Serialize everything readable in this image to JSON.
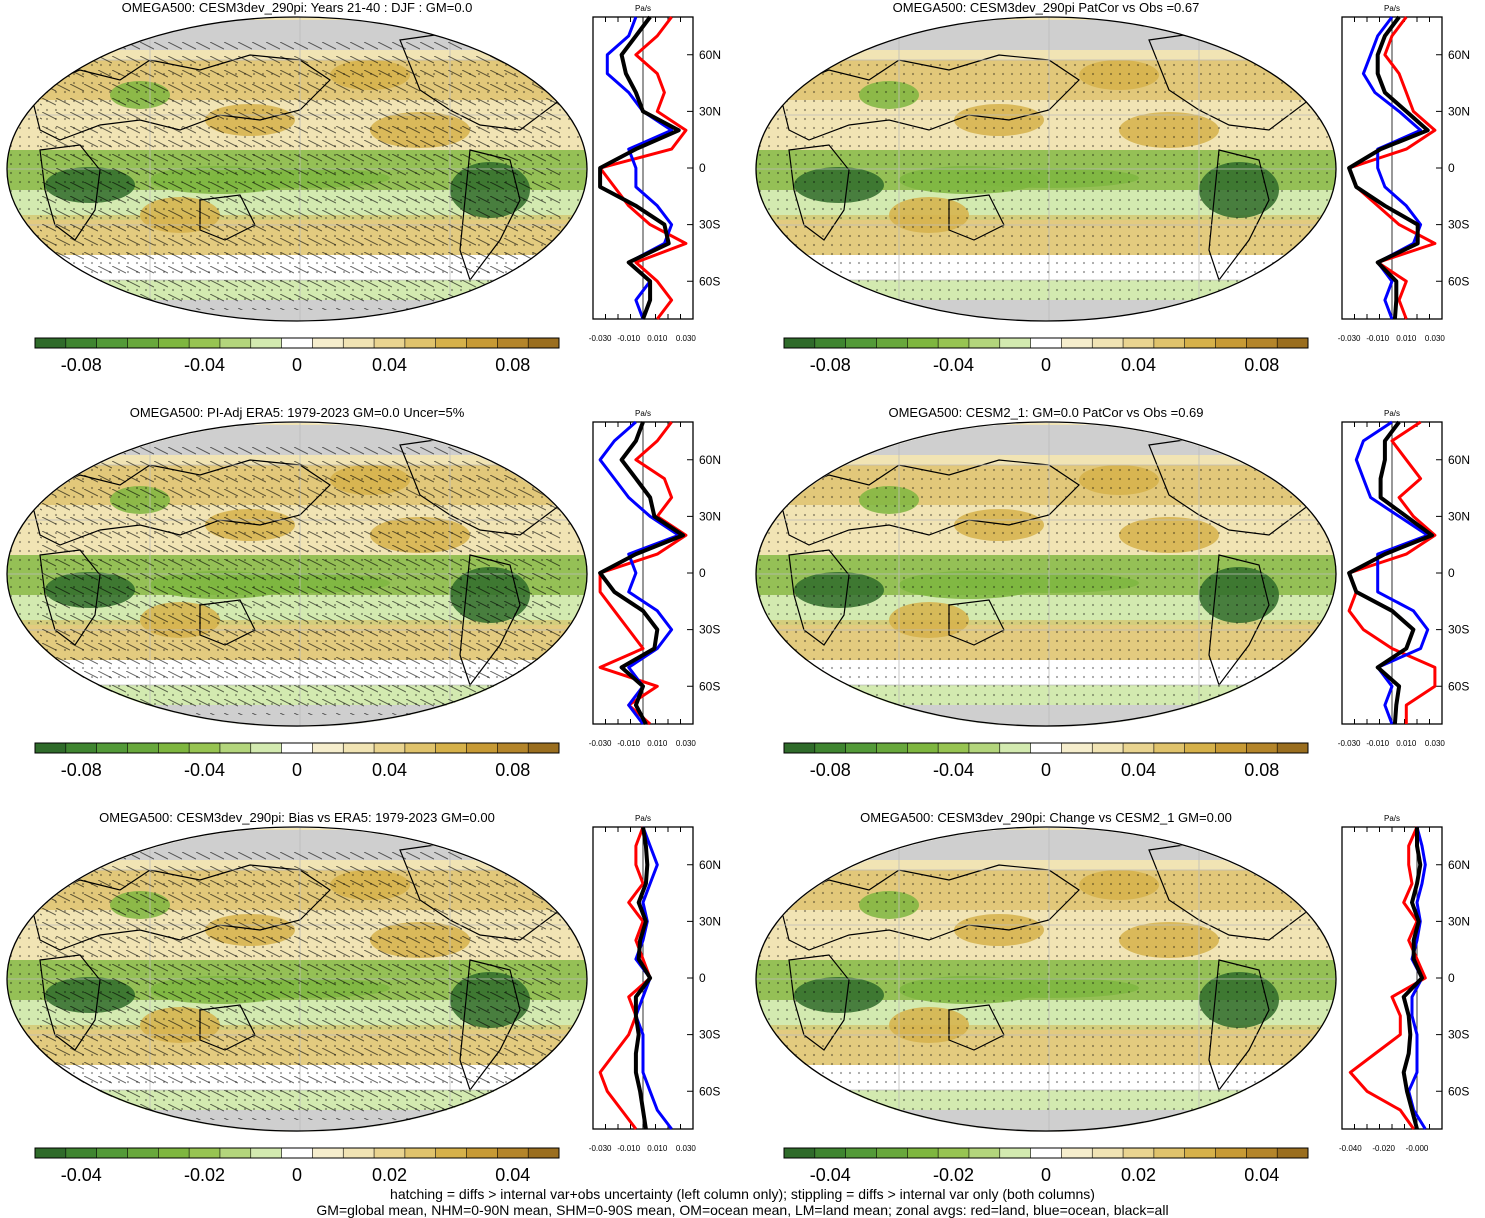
{
  "colors": {
    "negative_strong": "#2f6b2a",
    "negative_mid": "#7eb63f",
    "negative_light": "#d3eab0",
    "positive_light": "#f1e4b4",
    "positive_mid": "#d6b14a",
    "positive_strong": "#9a6e1f",
    "land": "#cfcfcf",
    "zonal_land": "#ff0000",
    "zonal_ocean": "#0000ff",
    "zonal_all": "#000000"
  },
  "shared": {
    "zonal_unit": "Pa/s",
    "lat_labels": [
      "60N",
      "30N",
      "0",
      "30S",
      "60S"
    ]
  },
  "panels": [
    {
      "title": "OMEGA500: CESM3dev_290pi: Years 21-40 : DJF : GM=0.0",
      "colorbar_labels": [
        "-0.08",
        "-0.04",
        "0",
        "0.04",
        "0.08"
      ],
      "zonal_xticks": [
        "-0.030",
        "-0.010",
        "0.010",
        "0.030"
      ],
      "hatching": true
    },
    {
      "title": "OMEGA500: CESM3dev_290pi PatCor vs Obs =0.67",
      "colorbar_labels": [
        "-0.08",
        "-0.04",
        "0",
        "0.04",
        "0.08"
      ],
      "zonal_xticks": [
        "-0.030",
        "-0.010",
        "0.010",
        "0.030"
      ],
      "hatching": false
    },
    {
      "title": "OMEGA500: PI-Adj ERA5: 1979-2023 GM=0.0 Uncer=5%",
      "colorbar_labels": [
        "-0.08",
        "-0.04",
        "0",
        "0.04",
        "0.08"
      ],
      "zonal_xticks": [
        "-0.030",
        "-0.010",
        "0.010",
        "0.030"
      ],
      "hatching": true
    },
    {
      "title": "OMEGA500: CESM2_1: GM=0.0 PatCor vs Obs =0.69",
      "colorbar_labels": [
        "-0.08",
        "-0.04",
        "0",
        "0.04",
        "0.08"
      ],
      "zonal_xticks": [
        "-0.030",
        "-0.010",
        "0.010",
        "0.030"
      ],
      "hatching": false
    },
    {
      "title": "OMEGA500: CESM3dev_290pi: Bias vs ERA5: 1979-2023 GM=0.00",
      "colorbar_labels": [
        "-0.04",
        "-0.02",
        "0",
        "0.02",
        "0.04"
      ],
      "zonal_xticks": [
        "-0.030",
        "-0.010",
        "0.010",
        "0.030"
      ],
      "hatching": true
    },
    {
      "title": "OMEGA500: CESM3dev_290pi: Change vs CESM2_1 GM=0.00",
      "colorbar_labels": [
        "-0.04",
        "-0.02",
        "0",
        "0.02",
        "0.04"
      ],
      "zonal_xticks": [
        "-0.040",
        "-0.020",
        "-0.000"
      ],
      "hatching": false
    }
  ],
  "footer": {
    "line1": "hatching = diffs > internal var+obs uncertainty (left column only); stippling = diffs > internal var only (both columns)",
    "line2": "GM=global mean, NHM=0-90N mean, SHM=0-90S mean, OM=ocean mean, LM=land mean; zonal avgs: red=land, blue=ocean, black=all"
  },
  "chart_data": [
    {
      "type": "heatmap",
      "title": "OMEGA500: CESM3dev_290pi: Years 21-40 : DJF : GM=0.0",
      "colorbar_ticks": [
        -0.08,
        -0.04,
        0,
        0.04,
        0.08
      ],
      "zonal_profile": {
        "xlabel": "Pa/s",
        "xlim": [
          -0.035,
          0.035
        ],
        "ylabels": [
          "60N",
          "30N",
          "0",
          "30S",
          "60S"
        ],
        "lat": [
          80,
          70,
          60,
          50,
          40,
          30,
          20,
          10,
          0,
          -10,
          -20,
          -30,
          -40,
          -50,
          -60,
          -70,
          -80
        ],
        "series": [
          {
            "name": "land",
            "values": [
              0.02,
              0.01,
              -0.005,
              0.01,
              0.015,
              0.01,
              0.03,
              0.02,
              -0.03,
              -0.02,
              -0.01,
              0.005,
              0.03,
              -0.005,
              0.01,
              0.02,
              0.01
            ]
          },
          {
            "name": "ocean",
            "values": [
              -0.005,
              -0.01,
              -0.025,
              -0.025,
              -0.01,
              0.0,
              0.02,
              -0.01,
              -0.005,
              -0.005,
              0.01,
              0.02,
              0.015,
              -0.01,
              0.005,
              -0.005,
              0.0
            ]
          },
          {
            "name": "all",
            "values": [
              0.005,
              -0.005,
              -0.015,
              -0.012,
              -0.005,
              0.0,
              0.025,
              -0.005,
              -0.03,
              -0.03,
              -0.005,
              0.015,
              0.018,
              -0.01,
              0.005,
              0.005,
              0.0
            ]
          }
        ]
      }
    },
    {
      "type": "heatmap",
      "title": "OMEGA500: CESM3dev_290pi PatCor vs Obs =0.67",
      "colorbar_ticks": [
        -0.08,
        -0.04,
        0,
        0.04,
        0.08
      ],
      "zonal_profile": {
        "xlabel": "Pa/s",
        "xlim": [
          -0.035,
          0.035
        ],
        "ylabels": [
          "60N",
          "30N",
          "0",
          "30S",
          "60S"
        ],
        "lat": [
          80,
          70,
          60,
          50,
          40,
          30,
          20,
          10,
          0,
          -10,
          -20,
          -30,
          -40,
          -50,
          -60,
          -70,
          -80
        ],
        "series": [
          {
            "name": "land",
            "values": [
              0.01,
              0.0,
              -0.005,
              0.005,
              0.01,
              0.015,
              0.03,
              0.01,
              -0.03,
              -0.025,
              -0.01,
              0.005,
              0.03,
              -0.01,
              0.01,
              0.005,
              0.01
            ]
          },
          {
            "name": "ocean",
            "values": [
              0.0,
              -0.01,
              -0.015,
              -0.02,
              -0.012,
              0.005,
              0.02,
              -0.01,
              -0.01,
              -0.005,
              0.01,
              0.02,
              0.015,
              -0.01,
              0.0,
              -0.005,
              0.0
            ]
          },
          {
            "name": "all",
            "values": [
              0.005,
              -0.005,
              -0.01,
              -0.01,
              -0.005,
              0.01,
              0.025,
              -0.008,
              -0.03,
              -0.025,
              -0.005,
              0.018,
              0.018,
              -0.01,
              0.003,
              0.003,
              0.002
            ]
          }
        ]
      }
    },
    {
      "type": "heatmap",
      "title": "OMEGA500: PI-Adj ERA5: 1979-2023 GM=0.0 Uncer=5%",
      "colorbar_ticks": [
        -0.08,
        -0.04,
        0,
        0.04,
        0.08
      ],
      "zonal_profile": {
        "xlabel": "Pa/s",
        "xlim": [
          -0.035,
          0.035
        ],
        "ylabels": [
          "60N",
          "30N",
          "0",
          "30S",
          "60S"
        ],
        "lat": [
          80,
          70,
          60,
          50,
          40,
          30,
          20,
          10,
          0,
          -10,
          -20,
          -30,
          -40,
          -50,
          -60,
          -70,
          -80
        ],
        "series": [
          {
            "name": "land",
            "values": [
              0.02,
              0.01,
              -0.005,
              0.015,
              0.02,
              0.01,
              0.03,
              0.01,
              -0.03,
              -0.03,
              -0.02,
              -0.01,
              0.0,
              -0.03,
              0.01,
              -0.01,
              0.005
            ]
          },
          {
            "name": "ocean",
            "values": [
              -0.005,
              -0.02,
              -0.03,
              -0.02,
              -0.01,
              0.005,
              0.025,
              -0.01,
              -0.005,
              -0.01,
              0.01,
              0.02,
              0.01,
              -0.01,
              0.0,
              -0.01,
              0.0
            ]
          },
          {
            "name": "all",
            "values": [
              0.0,
              -0.005,
              -0.015,
              -0.005,
              0.005,
              0.008,
              0.028,
              -0.005,
              -0.03,
              -0.02,
              0.0,
              0.01,
              0.008,
              -0.015,
              0.0,
              -0.005,
              0.002
            ]
          }
        ]
      }
    },
    {
      "type": "heatmap",
      "title": "OMEGA500: CESM2_1: GM=0.0 PatCor vs Obs =0.69",
      "colorbar_ticks": [
        -0.08,
        -0.04,
        0,
        0.04,
        0.08
      ],
      "zonal_profile": {
        "xlabel": "Pa/s",
        "xlim": [
          -0.035,
          0.035
        ],
        "ylabels": [
          "60N",
          "30N",
          "0",
          "30S",
          "60S"
        ],
        "lat": [
          80,
          70,
          60,
          50,
          40,
          30,
          20,
          10,
          0,
          -10,
          -20,
          -30,
          -40,
          -50,
          -60,
          -70,
          -80
        ],
        "series": [
          {
            "name": "land",
            "values": [
              0.02,
              0.0,
              0.01,
              0.02,
              0.005,
              0.015,
              0.03,
              0.01,
              -0.03,
              -0.025,
              -0.03,
              -0.02,
              0.0,
              0.03,
              0.03,
              0.01,
              0.01
            ]
          },
          {
            "name": "ocean",
            "values": [
              0.0,
              -0.02,
              -0.025,
              -0.02,
              -0.015,
              0.005,
              0.025,
              -0.01,
              -0.01,
              -0.01,
              0.015,
              0.025,
              0.02,
              -0.01,
              0.0,
              -0.005,
              0.0
            ]
          },
          {
            "name": "all",
            "values": [
              0.005,
              -0.005,
              -0.005,
              -0.008,
              -0.008,
              0.01,
              0.028,
              -0.005,
              -0.03,
              -0.025,
              0.0,
              0.015,
              0.01,
              -0.01,
              0.005,
              0.003,
              0.002
            ]
          }
        ]
      }
    },
    {
      "type": "heatmap",
      "title": "OMEGA500: CESM3dev_290pi: Bias vs ERA5: 1979-2023 GM=0.00",
      "colorbar_ticks": [
        -0.04,
        -0.02,
        0,
        0.02,
        0.04
      ],
      "zonal_profile": {
        "xlabel": "Pa/s",
        "xlim": [
          -0.035,
          0.035
        ],
        "ylabels": [
          "60N",
          "30N",
          "0",
          "30S",
          "60S"
        ],
        "lat": [
          80,
          70,
          60,
          50,
          40,
          30,
          20,
          10,
          0,
          -10,
          -20,
          -30,
          -40,
          -50,
          -60,
          -70,
          -80
        ],
        "series": [
          {
            "name": "land",
            "values": [
              0.0,
              -0.005,
              -0.005,
              0.0,
              -0.01,
              0.0,
              -0.005,
              0.0,
              0.005,
              -0.01,
              -0.005,
              -0.01,
              -0.02,
              -0.03,
              -0.025,
              -0.015,
              -0.005
            ]
          },
          {
            "name": "ocean",
            "values": [
              0.0,
              0.005,
              0.01,
              0.005,
              0.0,
              0.003,
              0.0,
              -0.005,
              0.005,
              0.0,
              -0.005,
              0.0,
              0.0,
              0.0,
              0.005,
              0.01,
              0.02
            ]
          },
          {
            "name": "all",
            "values": [
              0.0,
              0.002,
              0.003,
              0.002,
              -0.003,
              0.002,
              -0.002,
              -0.003,
              0.005,
              -0.005,
              -0.005,
              -0.003,
              -0.005,
              -0.005,
              -0.002,
              0.0,
              0.002
            ]
          }
        ]
      }
    },
    {
      "type": "heatmap",
      "title": "OMEGA500: CESM3dev_290pi: Change vs CESM2_1 GM=0.00",
      "colorbar_ticks": [
        -0.04,
        -0.02,
        0,
        0.02,
        0.04
      ],
      "zonal_profile": {
        "xlabel": "Pa/s",
        "xlim": [
          -0.045,
          0.015
        ],
        "ylabels": [
          "60N",
          "30N",
          "0",
          "30S",
          "60S"
        ],
        "lat": [
          80,
          70,
          60,
          50,
          40,
          30,
          20,
          10,
          0,
          -10,
          -20,
          -30,
          -40,
          -50,
          -60,
          -70,
          -80
        ],
        "series": [
          {
            "name": "land",
            "values": [
              0.0,
              -0.005,
              -0.005,
              -0.003,
              -0.008,
              0.0,
              -0.005,
              0.0,
              0.005,
              -0.015,
              -0.01,
              -0.01,
              -0.025,
              -0.04,
              -0.03,
              -0.01,
              -0.002
            ]
          },
          {
            "name": "ocean",
            "values": [
              0.0,
              0.003,
              0.005,
              0.003,
              0.0,
              0.002,
              0.0,
              -0.003,
              0.003,
              -0.003,
              -0.003,
              0.0,
              0.0,
              0.0,
              -0.005,
              -0.002,
              0.005
            ]
          },
          {
            "name": "all",
            "values": [
              0.0,
              0.0,
              0.002,
              0.0,
              -0.003,
              0.001,
              -0.002,
              -0.002,
              0.003,
              -0.008,
              -0.005,
              -0.004,
              -0.005,
              -0.008,
              -0.006,
              -0.003,
              0.0
            ]
          }
        ]
      }
    }
  ]
}
